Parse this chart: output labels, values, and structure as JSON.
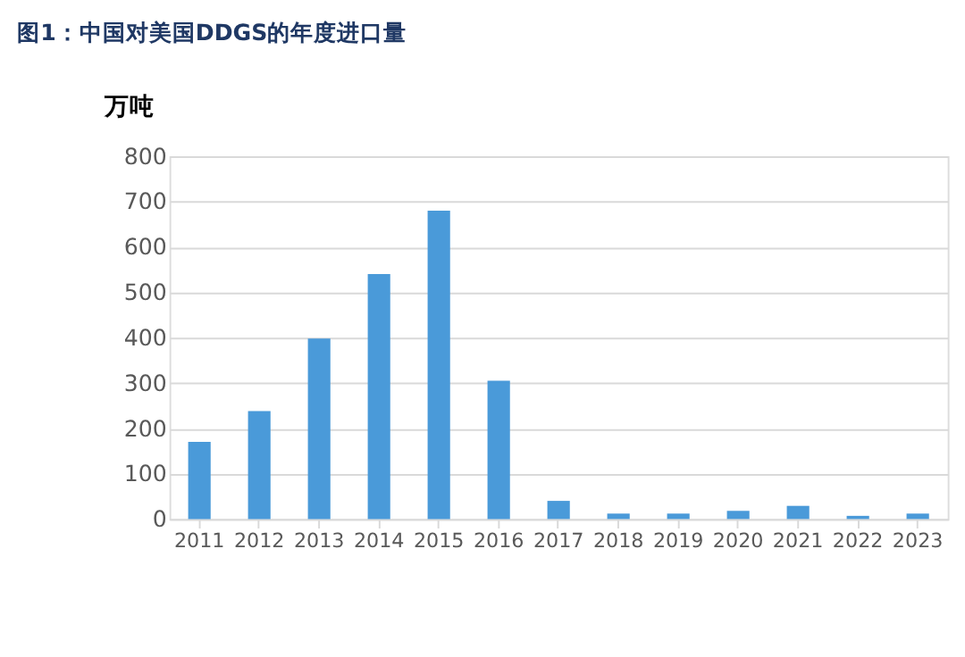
{
  "chart_data": {
    "type": "bar",
    "title": "图1：中国对美国DDGS的年度进口量",
    "ylabel": "万吨",
    "categories": [
      "2011",
      "2012",
      "2013",
      "2014",
      "2015",
      "2016",
      "2017",
      "2018",
      "2019",
      "2020",
      "2021",
      "2022",
      "2023"
    ],
    "values": [
      170,
      238,
      398,
      540,
      680,
      305,
      40,
      12,
      12,
      18,
      29,
      7,
      12
    ],
    "color": "#4a9ad9",
    "ylim": [
      0,
      800
    ],
    "yticks": [
      0,
      100,
      200,
      300,
      400,
      500,
      600,
      700,
      800
    ],
    "grid": "y"
  }
}
